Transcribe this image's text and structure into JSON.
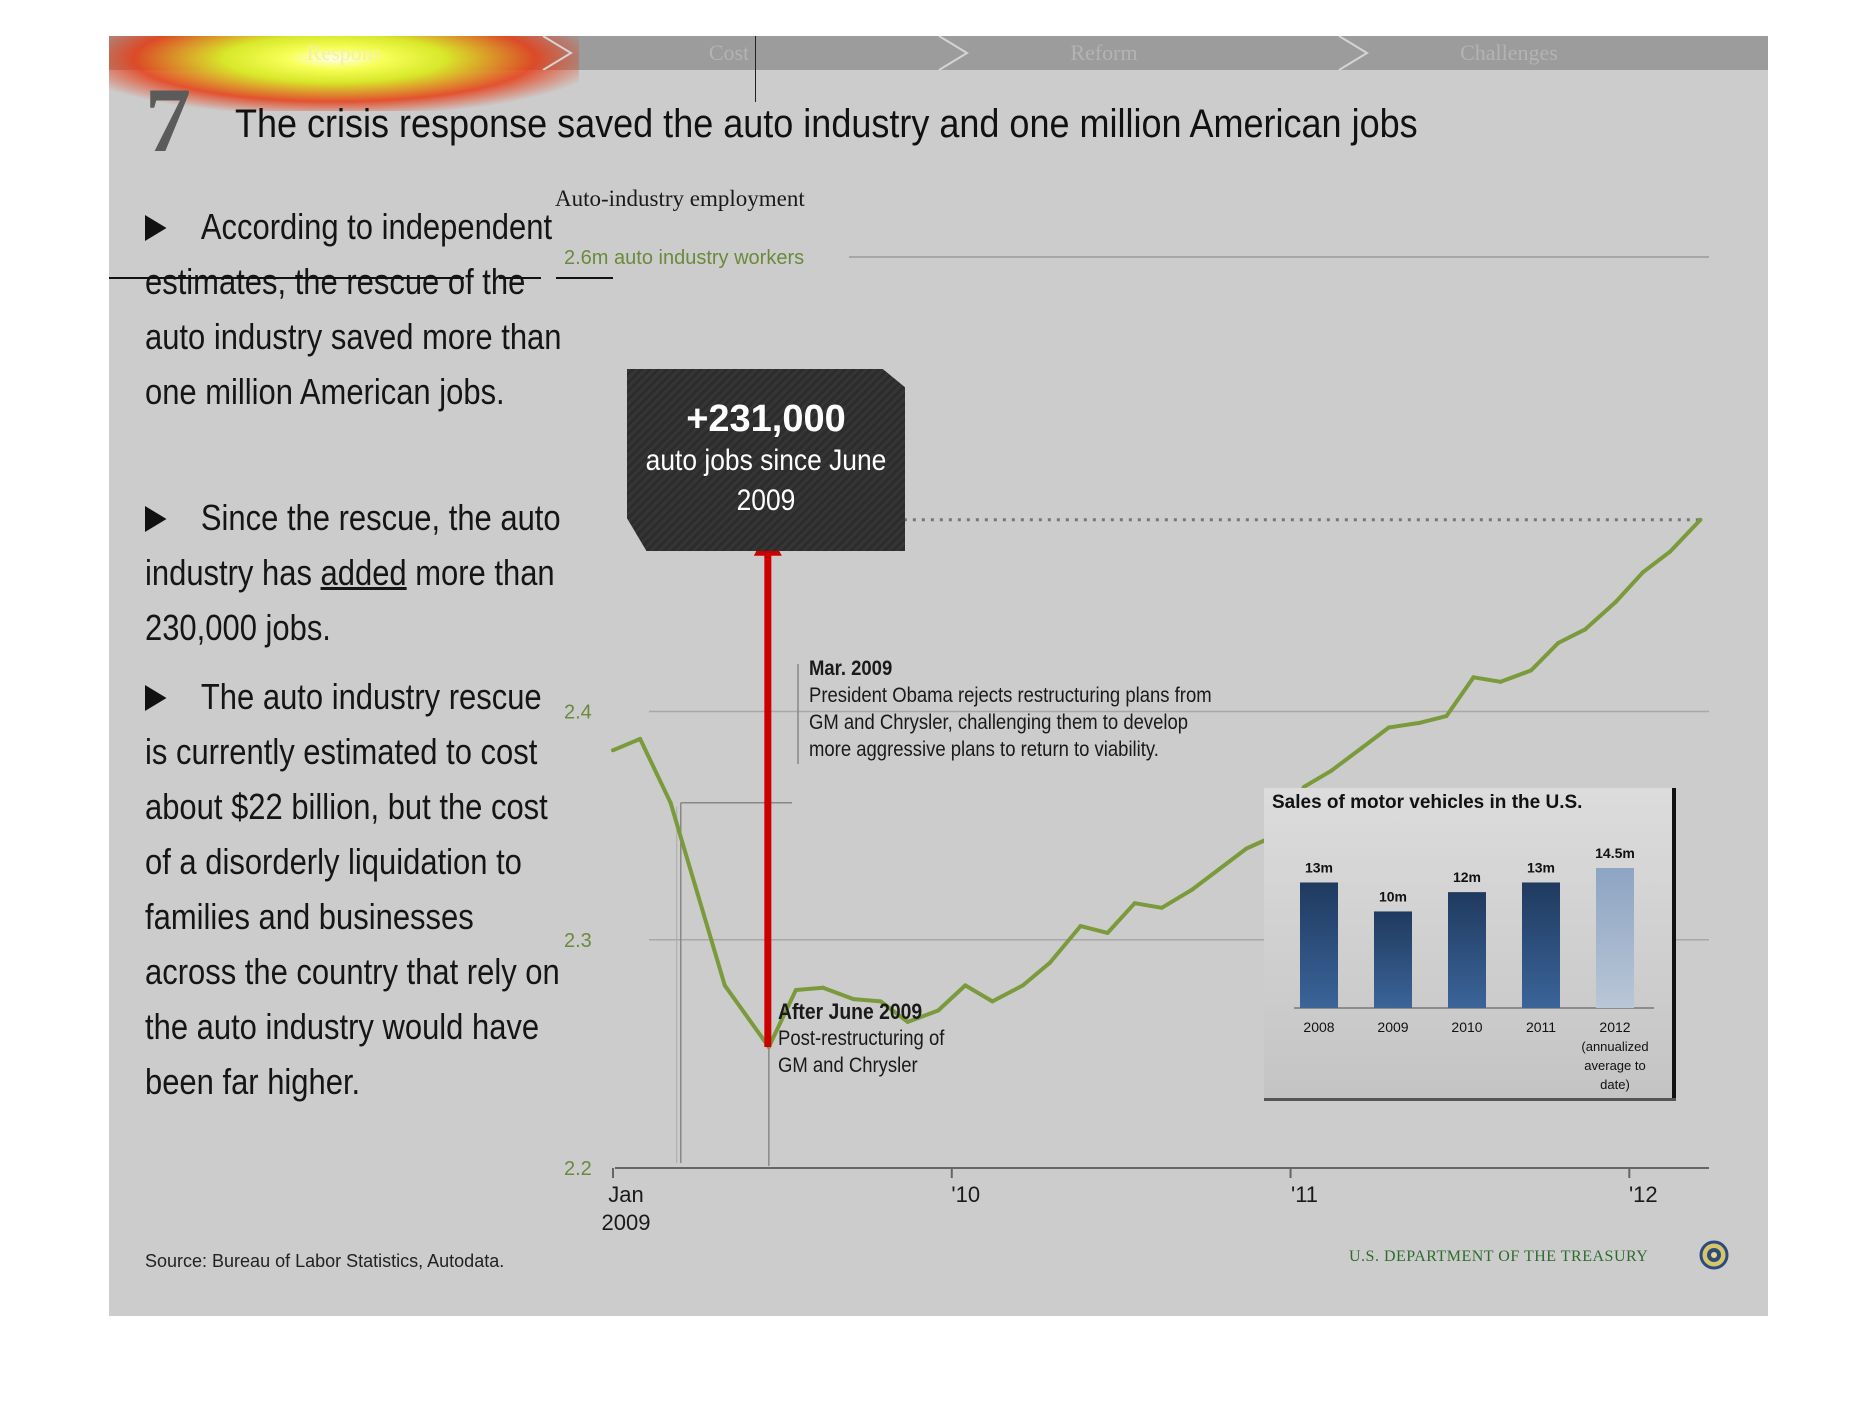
{
  "nav": {
    "tabs": [
      "Response",
      "Cost",
      "Reform",
      "Challenges"
    ],
    "active": "Response",
    "visible_label": "Respons"
  },
  "slide": {
    "number": "7",
    "title": "The crisis response saved the auto industry and one million American jobs"
  },
  "bullets": [
    {
      "parts": [
        "According to independent estimates, the rescue of the auto industry saved more than one million American jobs."
      ]
    },
    {
      "pre": "Since the rescue, the auto industry has ",
      "underlined": "added",
      "post": " more than 230,000 jobs."
    },
    {
      "parts": [
        "The auto industry rescue is currently estimated to cost about $22 billion, but the cost of a disorderly liquidation to families and businesses across the country that rely on the auto industry would have been far higher."
      ]
    }
  ],
  "source": "Source: Bureau of Labor Statistics, Autodata.",
  "footer_org": "U.S. DEPARTMENT OF THE TREASURY",
  "chart_data": [
    {
      "type": "line",
      "title": "Auto-industry employment",
      "top_label": "2.6m auto industry workers",
      "ylim": [
        2.2,
        2.6
      ],
      "yticks": [
        2.2,
        2.3,
        2.4
      ],
      "xticks": [
        {
          "x": 2009.0,
          "label": "Jan",
          "sublabel": "2009"
        },
        {
          "x": 2010.0,
          "label": "'10"
        },
        {
          "x": 2011.0,
          "label": "'11"
        },
        {
          "x": 2012.0,
          "label": "'12"
        }
      ],
      "xlim": [
        2009.0,
        2012.25
      ],
      "series": [
        {
          "color": "#7a9a3c",
          "x": [
            2009.0,
            2009.08,
            2009.17,
            2009.25,
            2009.33,
            2009.46,
            2009.54,
            2009.62,
            2009.71,
            2009.79,
            2009.87,
            2009.96,
            2010.04,
            2010.12,
            2010.21,
            2010.29,
            2010.38,
            2010.46,
            2010.54,
            2010.62,
            2010.71,
            2010.79,
            2010.87,
            2010.96,
            2011.04,
            2011.12,
            2011.21,
            2011.29,
            2011.38,
            2011.46,
            2011.54,
            2011.62,
            2011.71,
            2011.79,
            2011.87,
            2011.96,
            2012.04,
            2012.12,
            2012.21
          ],
          "y": [
            2.383,
            2.388,
            2.36,
            2.32,
            2.28,
            2.253,
            2.278,
            2.279,
            2.274,
            2.273,
            2.264,
            2.269,
            2.28,
            2.273,
            2.28,
            2.29,
            2.306,
            2.303,
            2.316,
            2.314,
            2.322,
            2.331,
            2.34,
            2.346,
            2.367,
            2.374,
            2.384,
            2.393,
            2.395,
            2.398,
            2.415,
            2.413,
            2.418,
            2.43,
            2.436,
            2.448,
            2.461,
            2.47,
            2.484
          ]
        }
      ],
      "reference_level": 2.484,
      "callout": {
        "value": "+231,000",
        "text": "auto jobs since June 2009"
      },
      "annotations": [
        {
          "x": 2009.2,
          "y": 2.36,
          "title": "Mar. 2009",
          "text": [
            "President Obama rejects restructuring plans from",
            "GM and Chrysler, challenging them to develop",
            "more aggressive plans to return to viability."
          ]
        },
        {
          "x": 2009.46,
          "y": 2.253,
          "title": "After June 2009",
          "text": [
            "Post-restructuring of",
            "GM and Chrysler"
          ]
        }
      ]
    },
    {
      "type": "bar",
      "title": "Sales of motor vehicles in the U.S.",
      "categories": [
        "2008",
        "2009",
        "2010",
        "2011",
        "2012"
      ],
      "category_notes": [
        "",
        "",
        "",
        "",
        "(annualized average to date)"
      ],
      "values": [
        13,
        10,
        12,
        13,
        14.5
      ],
      "value_labels": [
        "13m",
        "10m",
        "12m",
        "13m",
        "14.5m"
      ],
      "colors": [
        "#2a4d7c",
        "#2a4d7c",
        "#2a4d7c",
        "#2a4d7c",
        "#8fa6c4"
      ]
    }
  ]
}
